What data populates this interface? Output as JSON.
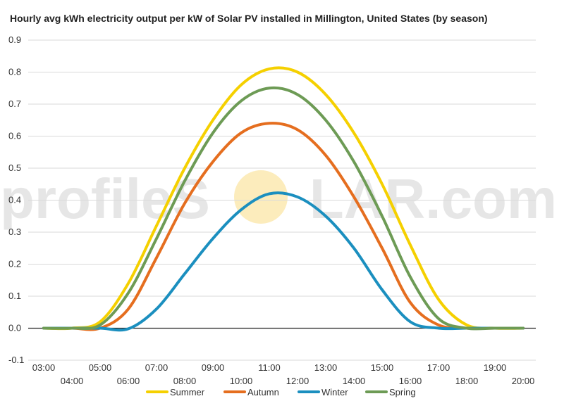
{
  "chart_data": {
    "type": "line",
    "title": "Hourly avg kWh electricity output per kW of Solar PV installed in Millington, United States (by season)",
    "xlabel": "",
    "ylabel": "",
    "ylim": [
      -0.1,
      0.9
    ],
    "yticks": [
      "0.9",
      "0.8",
      "0.7",
      "0.6",
      "0.5",
      "0.4",
      "0.3",
      "0.2",
      "0.1",
      "0.0",
      "-0.1"
    ],
    "x": [
      "03:00",
      "04:00",
      "05:00",
      "06:00",
      "07:00",
      "08:00",
      "09:00",
      "10:00",
      "11:00",
      "12:00",
      "13:00",
      "14:00",
      "15:00",
      "16:00",
      "17:00",
      "18:00",
      "19:00",
      "20:00"
    ],
    "grid": true,
    "legend_position": "bottom",
    "series": [
      {
        "name": "Summer",
        "color": "#f5d000",
        "values": [
          0.0,
          0.0,
          0.02,
          0.14,
          0.32,
          0.5,
          0.65,
          0.76,
          0.81,
          0.8,
          0.73,
          0.61,
          0.45,
          0.26,
          0.09,
          0.01,
          0.0,
          0.0
        ]
      },
      {
        "name": "Autumn",
        "color": "#e56e1f",
        "values": [
          0.0,
          0.0,
          0.0,
          0.06,
          0.22,
          0.39,
          0.52,
          0.61,
          0.64,
          0.62,
          0.54,
          0.41,
          0.25,
          0.08,
          0.01,
          0.0,
          0.0,
          0.0
        ]
      },
      {
        "name": "Winter",
        "color": "#1b8fbf",
        "values": [
          0.0,
          0.0,
          0.0,
          -0.002,
          0.06,
          0.17,
          0.28,
          0.37,
          0.42,
          0.41,
          0.35,
          0.25,
          0.12,
          0.02,
          0.0,
          0.0,
          0.0,
          0.0
        ]
      },
      {
        "name": "Spring",
        "color": "#6d9b55",
        "values": [
          0.0,
          0.0,
          0.01,
          0.11,
          0.28,
          0.46,
          0.61,
          0.71,
          0.75,
          0.73,
          0.65,
          0.52,
          0.35,
          0.16,
          0.03,
          0.0,
          0.0,
          0.0
        ]
      }
    ]
  },
  "watermark": {
    "text_before": "profileS",
    "text_after": "LAR.com",
    "sun_color": "#fbe6a6"
  }
}
